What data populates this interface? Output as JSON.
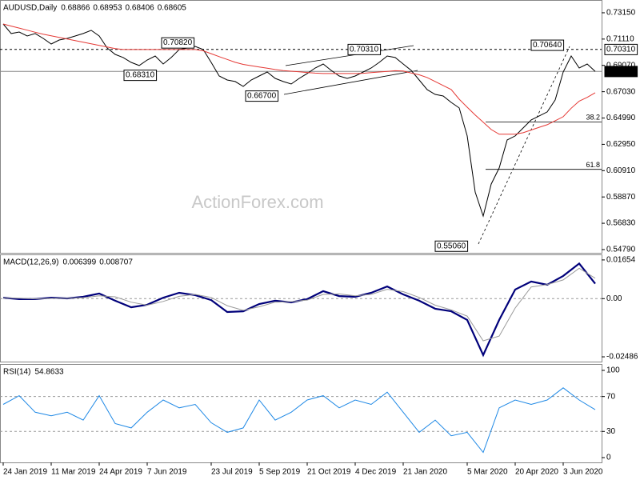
{
  "chart_data": [
    {
      "type": "line",
      "title": "AUDUSD,Daily",
      "ohlc": [
        0.68866,
        0.68953,
        0.68406,
        0.68605
      ],
      "watermark": "ActionForex.com",
      "series": [
        {
          "color": "#000000",
          "values": [
            0.7228,
            0.7154,
            0.7166,
            0.7135,
            0.7154,
            0.7116,
            0.7073,
            0.7104,
            0.7116,
            0.7135,
            0.7154,
            0.7179,
            0.7135,
            0.7042,
            0.6992,
            0.6968,
            0.693,
            0.6906,
            0.6949,
            0.698,
            0.6918,
            0.6968,
            0.703,
            0.7042,
            0.7054,
            0.703,
            0.693,
            0.6825,
            0.6794,
            0.6782,
            0.6744,
            0.6794,
            0.6825,
            0.6856,
            0.6806,
            0.6782,
            0.6763,
            0.6806,
            0.6844,
            0.6887,
            0.6918,
            0.6868,
            0.6825,
            0.6806,
            0.6825,
            0.6856,
            0.6887,
            0.693,
            0.698,
            0.6968,
            0.6918,
            0.6868,
            0.6794,
            0.6719,
            0.6682,
            0.667,
            0.662,
            0.6577,
            0.636,
            0.5925,
            0.5739,
            0.5987,
            0.6112,
            0.6329,
            0.636,
            0.6422,
            0.6484,
            0.6515,
            0.6546,
            0.6639,
            0.6856,
            0.698,
            0.6887,
            0.6918,
            0.6861
          ]
        },
        {
          "color": "#e53935",
          "values": [
            0.7228,
            0.7212,
            0.7196,
            0.718,
            0.7164,
            0.7149,
            0.7137,
            0.7124,
            0.7112,
            0.7099,
            0.7087,
            0.7074,
            0.7062,
            0.705,
            0.7037,
            0.703,
            0.703,
            0.703,
            0.703,
            0.703,
            0.703,
            0.703,
            0.703,
            0.703,
            0.703,
            0.702,
            0.6998,
            0.6975,
            0.6953,
            0.6931,
            0.6915,
            0.6905,
            0.6895,
            0.6885,
            0.6875,
            0.6867,
            0.6862,
            0.6857,
            0.6852,
            0.6847,
            0.6844,
            0.6844,
            0.6844,
            0.6844,
            0.6844,
            0.6846,
            0.6851,
            0.6856,
            0.6861,
            0.6866,
            0.6863,
            0.6848,
            0.6834,
            0.6813,
            0.6782,
            0.6751,
            0.672,
            0.6645,
            0.6583,
            0.6523,
            0.6466,
            0.641,
            0.6373,
            0.6373,
            0.6373,
            0.6385,
            0.6406,
            0.6427,
            0.6447,
            0.6478,
            0.6509,
            0.6575,
            0.663,
            0.6659,
            0.6695
          ]
        }
      ],
      "ylim": [
        0.5454,
        0.7414
      ],
      "yticks": [
        {
          "value": 0.7315,
          "label": "0.73150"
        },
        {
          "value": 0.7111,
          "label": "0.71110"
        },
        {
          "value": 0.6907,
          "label": "0.69070"
        },
        {
          "value": 0.6703,
          "label": "0.67030"
        },
        {
          "value": 0.6499,
          "label": "0.64990"
        },
        {
          "value": 0.6295,
          "label": "0.62950"
        },
        {
          "value": 0.6091,
          "label": "0.60910"
        },
        {
          "value": 0.5887,
          "label": "0.58870"
        },
        {
          "value": 0.5683,
          "label": "0.56830"
        },
        {
          "value": 0.5479,
          "label": "0.54790"
        }
      ],
      "grid": false,
      "price_lines": [
        {
          "value": 0.7031,
          "label": "0.70310"
        },
        {
          "value": 0.68605,
          "label": "0.68605"
        }
      ],
      "fib_levels": [
        {
          "value": 0.6469,
          "label": "38.2"
        },
        {
          "value": 0.6101,
          "label": "61.8"
        }
      ],
      "annotations": [
        {
          "value": 0.7082,
          "label": "0.70820"
        },
        {
          "value": 0.6831,
          "label": "0.68310"
        },
        {
          "value": 0.667,
          "label": "0.66700"
        },
        {
          "value": 0.7031,
          "label": "0.70310"
        },
        {
          "value": 0.7064,
          "label": "0.70640"
        },
        {
          "value": 0.5506,
          "label": "0.55060"
        }
      ]
    },
    {
      "type": "line",
      "title": "MACD(12,26,9)",
      "last_values": [
        0.006399,
        0.008707
      ],
      "series": [
        {
          "color": "#00007a",
          "values": [
            0.0004,
            -0.0002,
            -0.0002,
            0.0004,
            0.0001,
            0.0008,
            0.0022,
            -0.0009,
            -0.0037,
            -0.0026,
            0.0004,
            0.0025,
            0.0015,
            -0.0006,
            -0.0057,
            -0.0054,
            -0.0023,
            -0.0009,
            -0.0016,
            -0.0002,
            0.0032,
            0.0011,
            0.0008,
            0.0025,
            0.0052,
            0.0018,
            -0.0009,
            -0.0043,
            -0.0054,
            -0.0091,
            -0.0241,
            -0.0091,
            0.0039,
            0.0073,
            0.0059,
            0.0097,
            0.015,
            0.0064
          ]
        },
        {
          "color": "#9a9a9a",
          "values": [
            0.0003,
            0.0002,
            -0.0001,
            0.0001,
            0.0002,
            0.0004,
            0.0012,
            0.0008,
            -0.0015,
            -0.0028,
            -0.0012,
            0.001,
            0.0018,
            0.0005,
            -0.003,
            -0.005,
            -0.0035,
            -0.0015,
            -0.0013,
            -0.0006,
            0.0018,
            0.002,
            0.0012,
            0.0018,
            0.004,
            0.003,
            0.0005,
            -0.0028,
            -0.0048,
            -0.0075,
            -0.018,
            -0.016,
            -0.004,
            0.005,
            0.006,
            0.008,
            0.013,
            0.0087
          ]
        }
      ],
      "ylim": [
        -0.0269,
        0.0189
      ],
      "yticks": [
        {
          "value": 0.01654,
          "label": "0.01654"
        },
        {
          "value": 0,
          "label": "0.00"
        },
        {
          "value": -0.02486,
          "label": "-0.02486"
        }
      ],
      "grid": true
    },
    {
      "type": "line",
      "title": "RSI(14)",
      "last_values": [
        54.8633
      ],
      "categories": [
        "24 Jan 2019",
        null,
        null,
        "11 Mar 2019",
        null,
        null,
        "24 Apr 2019",
        null,
        null,
        "7 Jun 2019",
        null,
        null,
        null,
        "23 Jul 2019",
        null,
        null,
        "5 Sep 2019",
        null,
        null,
        "21 Oct 2019",
        null,
        null,
        "4 Dec 2019",
        null,
        null,
        "21 Jan 2020",
        null,
        null,
        null,
        "5 Mar 2020",
        null,
        null,
        "20 Apr 2020",
        null,
        null,
        "3 Jun 2020",
        null,
        null
      ],
      "series": [
        {
          "color": "#1e88e5",
          "values": [
            61,
            71,
            52,
            48,
            52,
            43,
            71,
            39,
            34,
            52,
            66,
            57,
            61,
            40,
            29,
            34,
            66,
            43,
            52,
            66,
            71,
            57,
            66,
            61,
            75,
            52,
            29,
            43,
            25,
            29,
            6,
            57,
            66,
            61,
            66,
            80,
            66,
            54.9
          ]
        }
      ],
      "ylim": [
        -5.5,
        107.3
      ],
      "yticks": [
        100,
        70,
        30,
        0
      ],
      "grid": true
    }
  ]
}
